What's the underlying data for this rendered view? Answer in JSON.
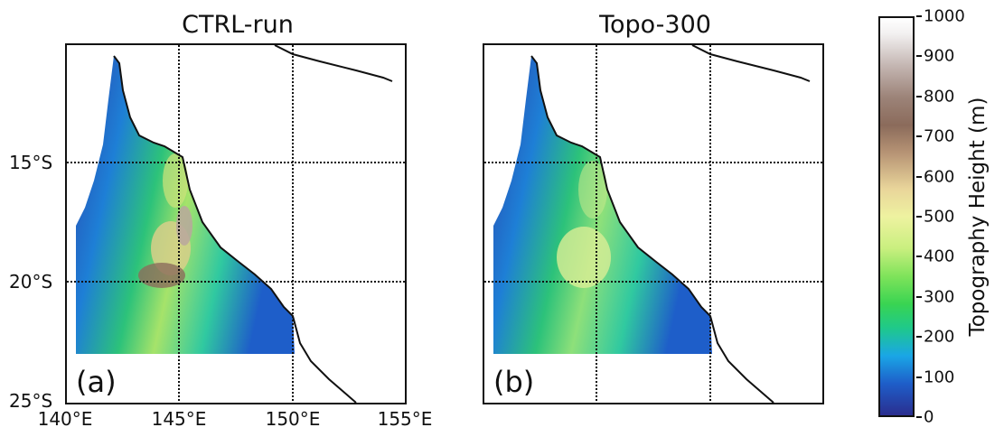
{
  "panels": [
    {
      "title": "CTRL-run",
      "label": "(a)"
    },
    {
      "title": "Topo-300",
      "label": "(b)"
    }
  ],
  "axes": {
    "lat_labels": [
      "15°S",
      "20°S",
      "25°S"
    ],
    "lon_labels": [
      "140°E",
      "145°E",
      "150°E",
      "155°E"
    ]
  },
  "colorbar": {
    "title": "Topography Height (m)",
    "ticks": [
      "1000",
      "900",
      "800",
      "700",
      "600",
      "500",
      "400",
      "300",
      "200",
      "100",
      "0"
    ],
    "colors": [
      "#2a2e8f",
      "#1aa6e6",
      "#39d452",
      "#eef2a0",
      "#8b6b5b",
      "#ffffff"
    ]
  }
}
